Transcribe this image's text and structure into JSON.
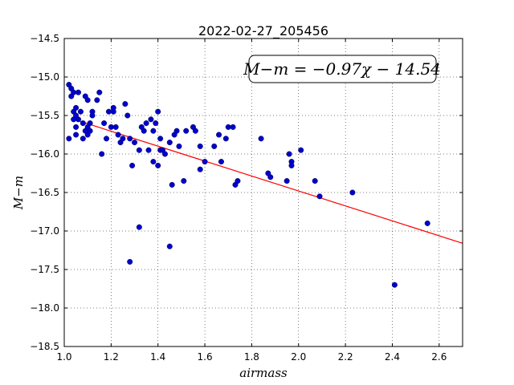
{
  "chart_data": {
    "type": "scatter",
    "title": "2022-02-27_205456",
    "xlabel": "airmass",
    "ylabel": "M−m",
    "xlim": [
      1.0,
      2.7
    ],
    "ylim": [
      -18.5,
      -14.5
    ],
    "y_inverted_display": false,
    "xticks": [
      1.0,
      1.2,
      1.4,
      1.6,
      1.8,
      2.0,
      2.2,
      2.4,
      2.6
    ],
    "xtick_labels": [
      "1.0",
      "1.2",
      "1.4",
      "1.6",
      "1.8",
      "2.0",
      "2.2",
      "2.4",
      "2.6"
    ],
    "yticks": [
      -14.5,
      -15.0,
      -15.5,
      -16.0,
      -16.5,
      -17.0,
      -17.5,
      -18.0,
      -18.5
    ],
    "ytick_labels": [
      "−14.5",
      "−15.0",
      "−15.5",
      "−16.0",
      "−16.5",
      "−17.0",
      "−17.5",
      "−18.0",
      "−18.5"
    ],
    "grid": true,
    "annotation": "M−m = −0.97χ − 14.54",
    "fit": {
      "slope": -0.97,
      "intercept": -14.54,
      "x_range": [
        1.05,
        2.7
      ],
      "color": "#ff0000"
    },
    "point_color": "#0000cc",
    "x": [
      1.02,
      1.02,
      1.03,
      1.03,
      1.04,
      1.04,
      1.04,
      1.05,
      1.05,
      1.05,
      1.05,
      1.06,
      1.06,
      1.07,
      1.08,
      1.08,
      1.09,
      1.09,
      1.1,
      1.1,
      1.1,
      1.11,
      1.11,
      1.12,
      1.12,
      1.14,
      1.15,
      1.16,
      1.17,
      1.18,
      1.19,
      1.2,
      1.21,
      1.21,
      1.22,
      1.23,
      1.24,
      1.25,
      1.26,
      1.27,
      1.28,
      1.29,
      1.3,
      1.32,
      1.33,
      1.34,
      1.35,
      1.36,
      1.37,
      1.38,
      1.38,
      1.39,
      1.4,
      1.4,
      1.41,
      1.41,
      1.42,
      1.43,
      1.45,
      1.46,
      1.47,
      1.48,
      1.49,
      1.51,
      1.52,
      1.55,
      1.56,
      1.58,
      1.58,
      1.6,
      1.64,
      1.66,
      1.67,
      1.69,
      1.7,
      1.72,
      1.73,
      1.74,
      1.84,
      1.87,
      1.88,
      1.95,
      1.96,
      1.97,
      1.97,
      2.01,
      2.07,
      2.09,
      2.23,
      2.41,
      2.55,
      1.28,
      1.32,
      1.45
    ],
    "y": [
      -15.8,
      -15.1,
      -15.15,
      -15.25,
      -15.45,
      -15.55,
      -15.2,
      -15.4,
      -15.5,
      -15.65,
      -15.75,
      -15.55,
      -15.2,
      -15.45,
      -15.6,
      -15.8,
      -15.7,
      -15.25,
      -15.65,
      -15.75,
      -15.3,
      -15.6,
      -15.7,
      -15.45,
      -15.5,
      -15.3,
      -15.2,
      -16.0,
      -15.6,
      -15.8,
      -15.45,
      -15.65,
      -15.4,
      -15.45,
      -15.65,
      -15.75,
      -15.85,
      -15.8,
      -15.35,
      -15.5,
      -15.8,
      -16.15,
      -15.85,
      -15.95,
      -15.65,
      -15.7,
      -15.6,
      -15.95,
      -15.55,
      -15.7,
      -16.1,
      -15.6,
      -15.45,
      -16.15,
      -15.8,
      -15.95,
      -15.95,
      -16.0,
      -15.85,
      -16.4,
      -15.75,
      -15.7,
      -15.9,
      -16.35,
      -15.7,
      -15.65,
      -15.7,
      -15.9,
      -16.2,
      -16.1,
      -15.9,
      -15.75,
      -16.1,
      -15.8,
      -15.65,
      -15.65,
      -16.4,
      -16.35,
      -15.8,
      -16.25,
      -16.3,
      -16.35,
      -16.0,
      -16.1,
      -16.15,
      -15.95,
      -16.35,
      -16.55,
      -16.5,
      -17.7,
      -16.9,
      -17.4,
      -16.95,
      -17.2
    ]
  }
}
